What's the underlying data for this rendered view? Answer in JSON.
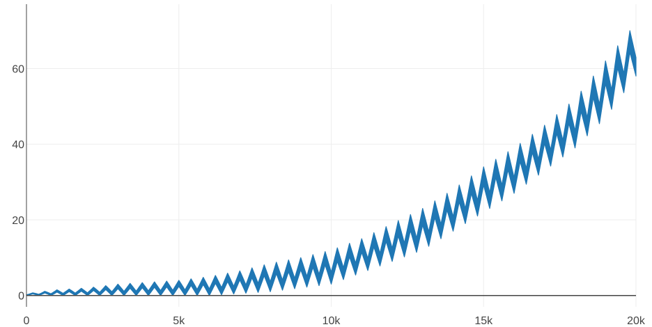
{
  "chart_data": {
    "type": "area",
    "title": "",
    "xlabel": "",
    "ylabel": "",
    "xlim": [
      0,
      20000
    ],
    "ylim": [
      -3,
      77
    ],
    "x_ticks": [
      {
        "value": 0,
        "label": "0"
      },
      {
        "value": 5000,
        "label": "5k"
      },
      {
        "value": 10000,
        "label": "10k"
      },
      {
        "value": 15000,
        "label": "15k"
      },
      {
        "value": 20000,
        "label": "20k"
      }
    ],
    "y_ticks": [
      {
        "value": 0,
        "label": "0"
      },
      {
        "value": 20,
        "label": "20"
      },
      {
        "value": 40,
        "label": "40"
      },
      {
        "value": 60,
        "label": "60"
      }
    ],
    "grid": true,
    "legend": "none",
    "series": [
      {
        "color": "#1f77b4",
        "x": [
          0,
          1000,
          2000,
          3000,
          4000,
          5000,
          6000,
          7000,
          8000,
          9000,
          10000,
          11000,
          12000,
          13000,
          14000,
          15000,
          16000,
          17000,
          18000,
          19000,
          20000
        ],
        "upper": [
          0.5,
          1.5,
          2,
          3,
          3.5,
          4,
          5,
          6.5,
          8.5,
          10,
          12,
          15,
          19,
          23,
          28,
          34,
          39,
          45,
          52,
          62,
          72
        ],
        "lower": [
          0,
          0,
          0,
          0,
          0,
          0,
          0,
          0.5,
          1,
          2,
          3,
          6,
          9,
          12,
          17,
          22,
          27,
          33,
          39,
          47,
          58
        ]
      }
    ],
    "oscillation_period": 400
  },
  "colors": {
    "series": "#1f77b4",
    "grid": "#eeeeee",
    "axis": "#444444",
    "zero_line": "#444444"
  }
}
